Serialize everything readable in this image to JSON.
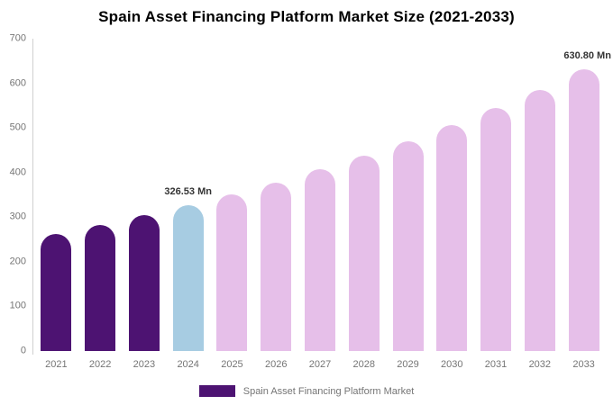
{
  "chart_data": {
    "type": "bar",
    "title": "Spain Asset Financing Platform Market Size (2021-2033)",
    "categories": [
      "2021",
      "2022",
      "2023",
      "2024",
      "2025",
      "2026",
      "2027",
      "2028",
      "2029",
      "2030",
      "2031",
      "2032",
      "2033"
    ],
    "values": [
      262,
      282,
      304,
      326.53,
      351,
      378,
      407,
      437,
      471,
      506,
      545,
      586,
      630.8
    ],
    "value_unit": "Mn",
    "bar_segments": [
      "historical",
      "historical",
      "historical",
      "base_year",
      "forecast",
      "forecast",
      "forecast",
      "forecast",
      "forecast",
      "forecast",
      "forecast",
      "forecast",
      "forecast"
    ],
    "segment_colors": {
      "historical": "#4D1372",
      "base_year": "#A7CCE2",
      "forecast": "#E6BFE9"
    },
    "annotations": [
      {
        "category": "2024",
        "text": "326.53 Mn"
      },
      {
        "category": "2033",
        "text": "630.80 Mn"
      }
    ],
    "ylim": [
      0,
      700
    ],
    "yticks": [
      0,
      100,
      200,
      300,
      400,
      500,
      600,
      700
    ],
    "grid": false,
    "legend_position": "bottom",
    "legend_label": "Spain Asset Financing Platform Market"
  },
  "styles": {
    "axis_line_color": "#cfcfcf",
    "tick_text_color": "#757575",
    "annotation_text_color": "#333333",
    "title_color": "#000000",
    "background": "#ffffff"
  }
}
